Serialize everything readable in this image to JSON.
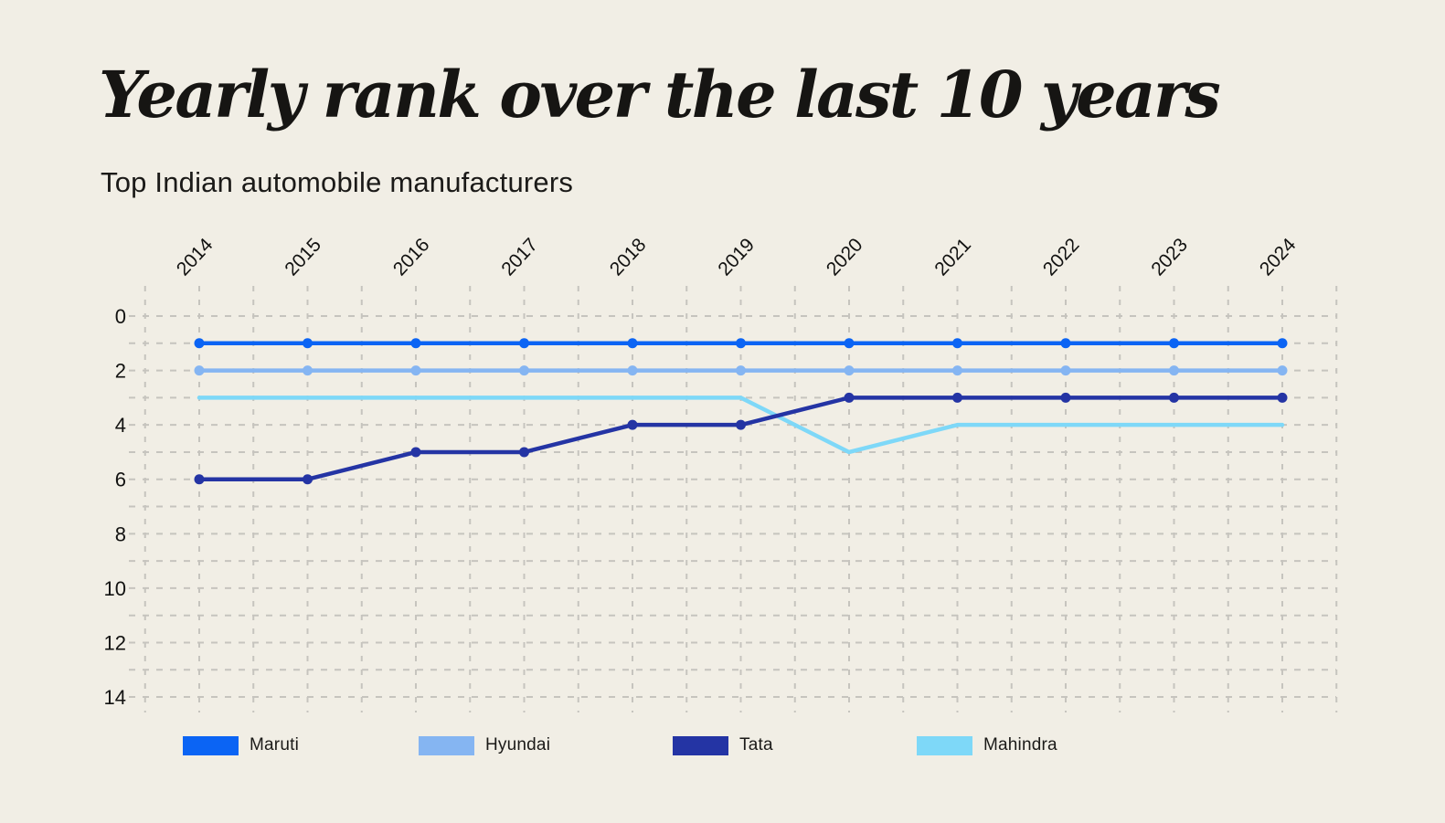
{
  "page": {
    "title": "Yearly rank over the last 10 years",
    "subtitle": "Top Indian automobile manufacturers",
    "background_color": "#f1eee5"
  },
  "chart_data": {
    "type": "line",
    "title": "Yearly rank over the last 10 years",
    "subtitle": "Top Indian automobile manufacturers",
    "x": [
      2014,
      2015,
      2016,
      2017,
      2018,
      2019,
      2020,
      2021,
      2022,
      2023,
      2024
    ],
    "xlabel": "",
    "ylabel": "",
    "y_axis": {
      "ticks": [
        0,
        2,
        4,
        6,
        8,
        10,
        12,
        14
      ],
      "min": 0,
      "max": 14,
      "direction": "top-to-bottom"
    },
    "grid": true,
    "grid_style": "dashed",
    "legend_position": "bottom",
    "series": [
      {
        "name": "Maruti",
        "color": "#0b64f4",
        "markers": true,
        "values": [
          1,
          1,
          1,
          1,
          1,
          1,
          1,
          1,
          1,
          1,
          1
        ]
      },
      {
        "name": "Hyundai",
        "color": "#85b5f2",
        "markers": true,
        "values": [
          2,
          2,
          2,
          2,
          2,
          2,
          2,
          2,
          2,
          2,
          2
        ]
      },
      {
        "name": "Tata",
        "color": "#2434a4",
        "markers": true,
        "values": [
          6,
          6,
          5,
          5,
          4,
          4,
          3,
          3,
          3,
          3,
          3
        ]
      },
      {
        "name": "Mahindra",
        "color": "#7ed8f8",
        "markers": false,
        "values": [
          3,
          3,
          3,
          3,
          3,
          3,
          5,
          4,
          4,
          4,
          4
        ]
      }
    ]
  }
}
